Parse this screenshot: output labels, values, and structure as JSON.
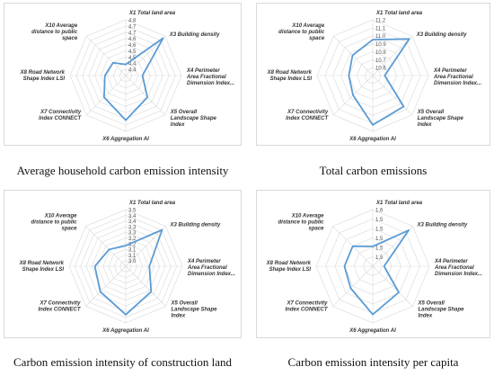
{
  "figure": {
    "captions": [
      "Average household carbon emission intensity",
      "Total carbon emissions",
      "Carbon emission intensity of construction land",
      "Carbon emission intensity per capita"
    ]
  },
  "chart_data": [
    {
      "type": "radar",
      "title": "",
      "axes": [
        "X1 Total land area",
        "X3 Building density",
        "X4 Perimeter Area Fractional Dimension Index...",
        "X5 Overall Landscape Shape Index",
        "X6 Aggregation AI",
        "X7 Connectivity Index CONNECT",
        "X8 Road Network Shape Index LSI",
        "X10 Average distance to public space"
      ],
      "rlim": [
        4.4,
        4.8
      ],
      "ticks": [
        "4.8",
        "4.7",
        "4.7",
        "4.6",
        "4.6",
        "4.5",
        "4.5",
        "4.4",
        "4.4"
      ],
      "series": [
        {
          "values": [
            4.48,
            4.78,
            4.52,
            4.62,
            4.72,
            4.62,
            4.55,
            4.53
          ]
        }
      ],
      "color": "#5b9bd5"
    },
    {
      "type": "radar",
      "title": "",
      "axes": [
        "X1 Total land area",
        "X3 Building density",
        "X4 Perimeter Area Fractional Dimension Index...",
        "X5 Overall Landscape Shape Index",
        "X6 Aggregation AI",
        "X7 Connectivity Index CONNECT",
        "X8 Road Network Shape Index LSI",
        "X10 Average distance to public space"
      ],
      "rlim": [
        10.5,
        11.2
      ],
      "ticks": [
        "11.2",
        "11.1",
        "11.0",
        "10.9",
        "10.8",
        "10.7",
        "10.6"
      ],
      "series": [
        {
          "values": [
            10.95,
            11.15,
            10.65,
            11.05,
            11.12,
            10.85,
            10.8,
            10.86
          ]
        }
      ],
      "color": "#5b9bd5"
    },
    {
      "type": "radar",
      "title": "",
      "axes": [
        "X1 Total land area",
        "X3 Building density",
        "X4 Perimeter Area Fractional Dimension Index...",
        "X5 Overall Landscape Shape Index",
        "X6 Aggregation AI",
        "X7 Connectivity Index CONNECT",
        "X8 Road Network Shape Index LSI",
        "X10 Average distance to public space"
      ],
      "rlim": [
        2.95,
        3.5
      ],
      "ticks": [
        "3.5",
        "3.4",
        "3.4",
        "3.3",
        "3.3",
        "3.2",
        "3.2",
        "3.1",
        "3.1",
        "3.0"
      ],
      "series": [
        {
          "values": [
            3.15,
            3.45,
            3.18,
            3.3,
            3.42,
            3.3,
            3.25,
            3.18
          ]
        }
      ],
      "color": "#5b9bd5"
    },
    {
      "type": "radar",
      "title": "",
      "axes": [
        "X1 Total land area",
        "X3 Building density",
        "X4 Perimeter Area Fractional Dimension Index...",
        "X5 Overall Landscape Shape Index",
        "X6 Aggregation AI",
        "X7 Connectivity Index CONNECT",
        "X8 Road Network Shape Index LSI",
        "X10 Average distance to public space"
      ],
      "rlim": [
        1.4,
        1.6
      ],
      "ticks": [
        "1.6",
        "1.5",
        "1.5",
        "1.5",
        "1.5",
        "1.5"
      ],
      "series": [
        {
          "values": [
            1.47,
            1.58,
            1.44,
            1.53,
            1.57,
            1.51,
            1.5,
            1.5
          ]
        }
      ],
      "color": "#5b9bd5"
    }
  ]
}
